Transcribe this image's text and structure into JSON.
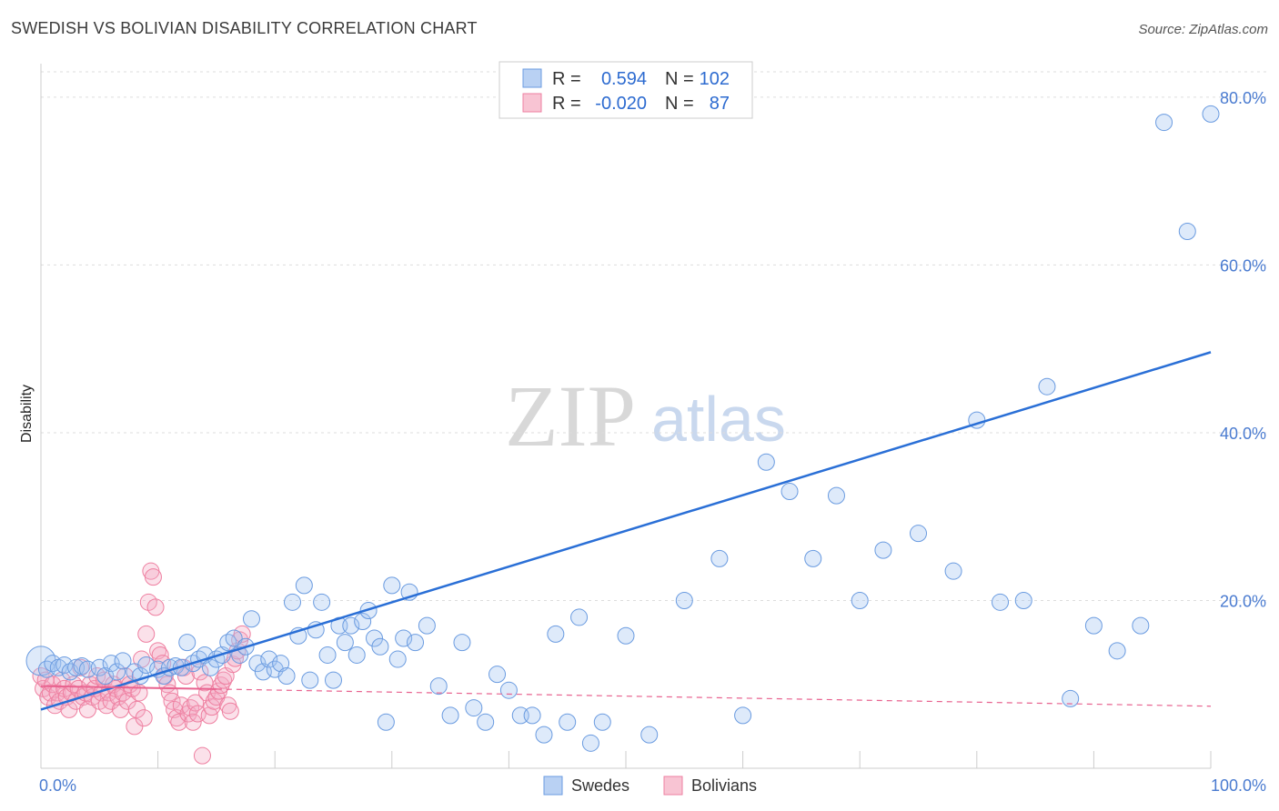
{
  "header": {
    "title": "SWEDISH VS BOLIVIAN DISABILITY CORRELATION CHART",
    "source": "Source: ZipAtlas.com"
  },
  "watermark": {
    "zip": "ZIP",
    "atlas": "atlas"
  },
  "legend": {
    "rows": [
      {
        "r_label": "R =",
        "r_value": "0.594",
        "n_label": "N =",
        "n_value": "102"
      },
      {
        "r_label": "R =",
        "r_value": "-0.020",
        "n_label": "N =",
        "n_value": "87"
      }
    ]
  },
  "bottom_legend": {
    "items": [
      "Swedes",
      "Bolivians"
    ]
  },
  "chart_data": {
    "type": "scatter",
    "title": "SWEDISH VS BOLIVIAN DISABILITY CORRELATION CHART",
    "xlabel": "",
    "ylabel": "Disability",
    "xlim": [
      0,
      100
    ],
    "ylim": [
      0,
      84
    ],
    "x_tick_labels": [
      {
        "value": 0,
        "label": "0.0%"
      },
      {
        "value": 100,
        "label": "100.0%"
      }
    ],
    "y_tick_labels": [
      {
        "value": 20,
        "label": "20.0%"
      },
      {
        "value": 40,
        "label": "40.0%"
      },
      {
        "value": 60,
        "label": "60.0%"
      },
      {
        "value": 80,
        "label": "80.0%"
      }
    ],
    "grid": true,
    "colors": {
      "swedes": "#6a9be0",
      "swedes_line": "#2a6fd6",
      "bolivians": "#ee7fa0",
      "bolivians_line": "#e8628f"
    },
    "series": [
      {
        "name": "Swedes",
        "r": 0.594,
        "n": 102,
        "trend": {
          "x0": 0,
          "y0": 7.0,
          "x1": 100,
          "y1": 49.6
        },
        "points": [
          [
            0,
            12.8
          ],
          [
            0.5,
            11.8
          ],
          [
            1,
            12.5
          ],
          [
            1.5,
            12.0
          ],
          [
            2,
            12.3
          ],
          [
            2.5,
            11.5
          ],
          [
            3,
            12.0
          ],
          [
            3.5,
            12.2
          ],
          [
            4,
            11.8
          ],
          [
            5,
            12.0
          ],
          [
            5.5,
            11.0
          ],
          [
            6,
            12.5
          ],
          [
            6.5,
            11.5
          ],
          [
            7,
            12.8
          ],
          [
            8,
            11.5
          ],
          [
            8.5,
            11.0
          ],
          [
            9,
            12.3
          ],
          [
            10,
            11.8
          ],
          [
            10.5,
            11.0
          ],
          [
            11,
            12.0
          ],
          [
            11.5,
            12.2
          ],
          [
            12,
            12.0
          ],
          [
            12.5,
            15.0
          ],
          [
            13,
            12.5
          ],
          [
            13.5,
            13.0
          ],
          [
            14,
            13.5
          ],
          [
            14.5,
            12.0
          ],
          [
            15,
            13.0
          ],
          [
            15.5,
            13.5
          ],
          [
            16,
            15.0
          ],
          [
            16.5,
            15.5
          ],
          [
            17,
            13.5
          ],
          [
            17.5,
            14.5
          ],
          [
            18,
            17.8
          ],
          [
            18.5,
            12.5
          ],
          [
            19,
            11.5
          ],
          [
            19.5,
            13.0
          ],
          [
            20,
            11.8
          ],
          [
            20.5,
            12.5
          ],
          [
            21,
            11.0
          ],
          [
            21.5,
            19.8
          ],
          [
            22,
            15.8
          ],
          [
            22.5,
            21.8
          ],
          [
            23,
            10.5
          ],
          [
            23.5,
            16.5
          ],
          [
            24,
            19.8
          ],
          [
            24.5,
            13.5
          ],
          [
            25,
            10.5
          ],
          [
            25.5,
            17.0
          ],
          [
            26,
            15.0
          ],
          [
            26.5,
            17.0
          ],
          [
            27,
            13.5
          ],
          [
            27.5,
            17.5
          ],
          [
            28,
            18.8
          ],
          [
            28.5,
            15.5
          ],
          [
            29,
            14.5
          ],
          [
            29.5,
            5.5
          ],
          [
            30,
            21.8
          ],
          [
            30.5,
            13.0
          ],
          [
            31,
            15.5
          ],
          [
            31.5,
            21.0
          ],
          [
            32,
            15.0
          ],
          [
            33,
            17.0
          ],
          [
            34,
            9.8
          ],
          [
            35,
            6.3
          ],
          [
            36,
            15.0
          ],
          [
            37,
            7.2
          ],
          [
            38,
            5.5
          ],
          [
            39,
            11.2
          ],
          [
            40,
            9.3
          ],
          [
            41,
            6.3
          ],
          [
            42,
            6.3
          ],
          [
            43,
            4.0
          ],
          [
            44,
            16.0
          ],
          [
            45,
            5.5
          ],
          [
            46,
            18.0
          ],
          [
            47,
            3.0
          ],
          [
            48,
            5.5
          ],
          [
            50,
            15.8
          ],
          [
            52,
            4.0
          ],
          [
            55,
            20.0
          ],
          [
            58,
            25.0
          ],
          [
            60,
            6.3
          ],
          [
            62,
            36.5
          ],
          [
            64,
            33.0
          ],
          [
            66,
            25.0
          ],
          [
            68,
            32.5
          ],
          [
            70,
            20.0
          ],
          [
            72,
            26.0
          ],
          [
            75,
            28.0
          ],
          [
            78,
            23.5
          ],
          [
            80,
            41.5
          ],
          [
            82,
            19.8
          ],
          [
            84,
            20.0
          ],
          [
            86,
            45.5
          ],
          [
            88,
            8.3
          ],
          [
            90,
            17.0
          ],
          [
            92,
            14.0
          ],
          [
            94,
            17.0
          ],
          [
            96,
            77.0
          ],
          [
            98,
            64.0
          ],
          [
            100,
            78.0
          ]
        ]
      },
      {
        "name": "Bolivians",
        "r": -0.02,
        "n": 87,
        "trend": {
          "x0": 0,
          "y0": 9.8,
          "x1": 100,
          "y1": 7.4,
          "solid_until_x": 15
        },
        "points": [
          [
            0,
            11.0
          ],
          [
            0.2,
            9.5
          ],
          [
            0.4,
            10.5
          ],
          [
            0.6,
            8.5
          ],
          [
            0.8,
            9.0
          ],
          [
            1,
            10.0
          ],
          [
            1.2,
            7.5
          ],
          [
            1.4,
            9.0
          ],
          [
            1.6,
            8.0
          ],
          [
            1.8,
            10.5
          ],
          [
            2,
            9.5
          ],
          [
            2.2,
            8.5
          ],
          [
            2.4,
            7.0
          ],
          [
            2.6,
            9.0
          ],
          [
            2.8,
            10.0
          ],
          [
            3,
            8.0
          ],
          [
            3.2,
            9.5
          ],
          [
            3.4,
            12.0
          ],
          [
            3.6,
            8.5
          ],
          [
            3.8,
            9.0
          ],
          [
            4,
            7.0
          ],
          [
            4.2,
            10.0
          ],
          [
            4.4,
            8.5
          ],
          [
            4.6,
            9.5
          ],
          [
            4.8,
            11.0
          ],
          [
            5,
            8.0
          ],
          [
            5.2,
            9.0
          ],
          [
            5.4,
            10.5
          ],
          [
            5.6,
            7.5
          ],
          [
            5.8,
            9.0
          ],
          [
            6,
            8.0
          ],
          [
            6.2,
            10.0
          ],
          [
            6.4,
            9.5
          ],
          [
            6.6,
            8.5
          ],
          [
            6.8,
            7.0
          ],
          [
            7,
            9.0
          ],
          [
            7.2,
            11.0
          ],
          [
            7.4,
            8.0
          ],
          [
            7.6,
            10.0
          ],
          [
            7.8,
            9.5
          ],
          [
            8,
            5.0
          ],
          [
            8.2,
            7.0
          ],
          [
            8.4,
            9.0
          ],
          [
            8.6,
            13.0
          ],
          [
            8.8,
            6.0
          ],
          [
            9,
            16.0
          ],
          [
            9.2,
            19.8
          ],
          [
            9.4,
            23.5
          ],
          [
            9.6,
            22.8
          ],
          [
            9.8,
            19.2
          ],
          [
            10,
            14.0
          ],
          [
            10.2,
            13.5
          ],
          [
            10.4,
            12.5
          ],
          [
            10.6,
            11.0
          ],
          [
            10.8,
            10.0
          ],
          [
            11,
            9.0
          ],
          [
            11.2,
            8.0
          ],
          [
            11.4,
            7.0
          ],
          [
            11.6,
            6.0
          ],
          [
            11.8,
            5.5
          ],
          [
            12,
            7.5
          ],
          [
            12.2,
            12.0
          ],
          [
            12.4,
            11.0
          ],
          [
            12.6,
            6.5
          ],
          [
            12.8,
            7.2
          ],
          [
            13,
            5.5
          ],
          [
            13.2,
            7.8
          ],
          [
            13.4,
            6.5
          ],
          [
            13.6,
            11.5
          ],
          [
            13.8,
            1.5
          ],
          [
            14,
            10.2
          ],
          [
            14.2,
            9.0
          ],
          [
            14.4,
            6.3
          ],
          [
            14.6,
            7.3
          ],
          [
            14.8,
            8.0
          ],
          [
            15,
            8.5
          ],
          [
            15.2,
            9.2
          ],
          [
            15.4,
            9.9
          ],
          [
            15.6,
            10.5
          ],
          [
            15.8,
            11.0
          ],
          [
            16,
            7.5
          ],
          [
            16.2,
            6.8
          ],
          [
            16.4,
            12.4
          ],
          [
            16.6,
            13.1
          ],
          [
            16.8,
            14.0
          ],
          [
            17,
            15.3
          ],
          [
            17.2,
            16.0
          ]
        ]
      }
    ]
  }
}
